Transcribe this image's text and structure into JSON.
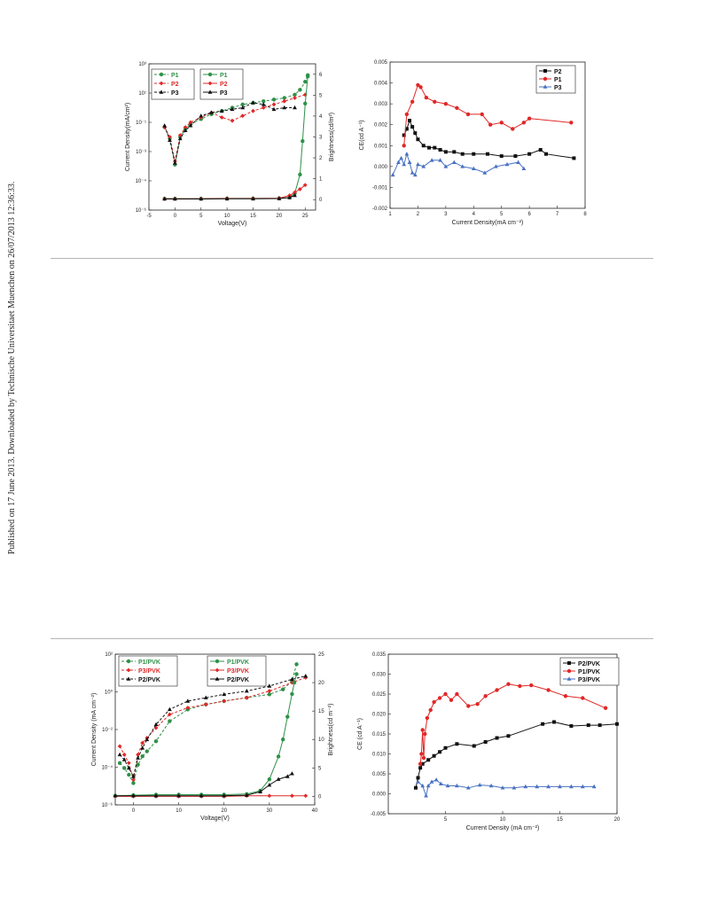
{
  "side_note": "Published on 17 June 2013. Downloaded by Technische Universitaet Muenchen on 26/07/2013 12:36:33.",
  "colors": {
    "green": "#2e9148",
    "red": "#e02828",
    "black": "#111111",
    "blue": "#4a72c2"
  },
  "chart_data": [
    {
      "type": "line",
      "xlabel": "Voltage(V)",
      "ylabel": "Current Density(mA/cm²)",
      "y2label": "Brightness(cd/m²)",
      "xlim": [
        -5,
        27
      ],
      "xticks": [
        -5,
        0,
        5,
        10,
        15,
        20,
        25
      ],
      "ylim": [
        -6,
        3
      ],
      "ytick_labels": [
        "10⁻⁶",
        "10⁻⁴",
        "10⁻³",
        "10⁻¹",
        "10¹",
        "10³"
      ],
      "y2lim": [
        -0.5,
        6.5
      ],
      "y2ticks": [
        0,
        1,
        2,
        3,
        4,
        5,
        6
      ],
      "legend_left": [
        "P1",
        "P2",
        "P3"
      ],
      "legend_right": [
        "P1",
        "P2",
        "P3"
      ],
      "series": [
        {
          "name": "P1",
          "kind": "current",
          "style": "dash",
          "color": "green",
          "x": [
            -2,
            -1,
            0,
            1,
            2,
            3,
            5,
            7,
            9,
            11,
            13,
            15,
            17,
            19,
            21,
            23,
            24,
            25,
            25.5
          ],
          "y": [
            -0.9,
            -1.6,
            -3.2,
            -1.5,
            -1,
            -0.7,
            -0.4,
            -0.1,
            0.1,
            0.3,
            0.5,
            0.6,
            0.7,
            0.8,
            0.9,
            1.1,
            1.4,
            1.9,
            2.3
          ]
        },
        {
          "name": "P2",
          "kind": "current",
          "style": "dash",
          "color": "red",
          "x": [
            -2,
            -1,
            0,
            1,
            2,
            3,
            5,
            7,
            9,
            11,
            13,
            15,
            17,
            19,
            21,
            23,
            25
          ],
          "y": [
            -0.9,
            -1.5,
            -3.0,
            -1.4,
            -0.9,
            -0.6,
            -0.3,
            0.0,
            -0.3,
            -0.5,
            -0.2,
            0.1,
            0.3,
            0.5,
            0.7,
            0.9,
            1.1
          ]
        },
        {
          "name": "P3",
          "kind": "current",
          "style": "dash",
          "color": "black",
          "x": [
            -2,
            -1,
            0,
            1,
            2,
            3,
            5,
            7,
            9,
            11,
            13,
            15,
            17,
            19,
            21,
            23
          ],
          "y": [
            -0.8,
            -1.7,
            -3.1,
            -1.6,
            -1.1,
            -0.8,
            -0.2,
            0.0,
            0.1,
            0.2,
            0.3,
            0.6,
            0.5,
            0.2,
            0.3,
            0.3
          ]
        },
        {
          "name": "P1",
          "kind": "brightness",
          "style": "solid",
          "color": "green",
          "x": [
            -2,
            0,
            5,
            10,
            15,
            20,
            22,
            23,
            24,
            24.5,
            25,
            25.5
          ],
          "y": [
            0.05,
            0.05,
            0.05,
            0.06,
            0.06,
            0.07,
            0.1,
            0.3,
            1.2,
            2.8,
            4.6,
            5.9
          ]
        },
        {
          "name": "P2",
          "kind": "brightness",
          "style": "solid",
          "color": "red",
          "x": [
            -2,
            0,
            5,
            10,
            15,
            20,
            22,
            23,
            24,
            25
          ],
          "y": [
            0.04,
            0.04,
            0.04,
            0.05,
            0.05,
            0.07,
            0.2,
            0.35,
            0.5,
            0.7
          ]
        },
        {
          "name": "P3",
          "kind": "brightness",
          "style": "solid",
          "color": "black",
          "x": [
            -2,
            0,
            5,
            10,
            15,
            20,
            22,
            23
          ],
          "y": [
            0.03,
            0.03,
            0.03,
            0.04,
            0.04,
            0.05,
            0.1,
            0.2
          ]
        }
      ]
    },
    {
      "type": "line",
      "xlabel": "Current Density(mA cm⁻²)",
      "ylabel": "CE(cd A⁻¹)",
      "xlim": [
        1,
        8
      ],
      "xticks": [
        1,
        2,
        3,
        4,
        5,
        6,
        7,
        8
      ],
      "ylim": [
        -0.002,
        0.005
      ],
      "yticks": [
        "-0.002",
        "-0.001",
        "0.000",
        "0.001",
        "0.002",
        "0.003",
        "0.004",
        "0.005"
      ],
      "legend": [
        "P2",
        "P1",
        "P3"
      ],
      "series": [
        {
          "name": "P2",
          "color": "black",
          "marker": "square",
          "x": [
            1.5,
            1.6,
            1.7,
            1.8,
            1.9,
            2.0,
            2.2,
            2.4,
            2.6,
            2.8,
            3.0,
            3.3,
            3.6,
            4.0,
            4.5,
            5.0,
            5.5,
            6.0,
            6.4,
            6.6,
            7.6
          ],
          "y": [
            0.0015,
            0.0018,
            0.0022,
            0.0019,
            0.0016,
            0.0013,
            0.001,
            0.0009,
            0.0009,
            0.0008,
            0.0007,
            0.0007,
            0.0006,
            0.0006,
            0.0006,
            0.0005,
            0.0005,
            0.0006,
            0.0008,
            0.0006,
            0.0004
          ]
        },
        {
          "name": "P1",
          "color": "red",
          "marker": "circle",
          "x": [
            1.5,
            1.6,
            1.8,
            2.0,
            2.1,
            2.3,
            2.6,
            3.0,
            3.4,
            3.8,
            4.3,
            4.6,
            5.0,
            5.4,
            5.8,
            6.0,
            7.5
          ],
          "y": [
            0.001,
            0.0025,
            0.0031,
            0.0039,
            0.0038,
            0.0033,
            0.0031,
            0.003,
            0.0028,
            0.0025,
            0.0025,
            0.002,
            0.0021,
            0.0018,
            0.0021,
            0.0023,
            0.0021
          ]
        },
        {
          "name": "P3",
          "color": "blue",
          "marker": "triangle",
          "x": [
            1.1,
            1.3,
            1.4,
            1.5,
            1.6,
            1.7,
            1.8,
            1.9,
            2.0,
            2.2,
            2.5,
            2.8,
            3.0,
            3.3,
            3.6,
            4.0,
            4.4,
            4.8,
            5.2,
            5.6,
            5.8
          ],
          "y": [
            -0.0004,
            0.0002,
            0.0004,
            0.0001,
            0.0006,
            0.0002,
            -0.0003,
            -0.0004,
            0.0001,
            0.0,
            0.0003,
            0.0003,
            0.0,
            0.0002,
            0.0,
            -0.0001,
            -0.0003,
            0.0,
            0.0001,
            0.0002,
            -0.0001
          ]
        }
      ]
    },
    {
      "type": "line",
      "xlabel": "Voltage(V)",
      "ylabel": "Current Density (mA cm⁻²)",
      "y2label": "Brightness(cd m⁻²)",
      "xlim": [
        -4,
        40
      ],
      "xticks": [
        0,
        10,
        20,
        30,
        40
      ],
      "ylim": [
        -6,
        3
      ],
      "ytick_labels": [
        "10⁻⁶",
        "10⁻⁴",
        "10⁻²",
        "10⁰",
        "10²"
      ],
      "y2lim": [
        -1.5,
        25
      ],
      "y2ticks": [
        0,
        5,
        10,
        15,
        20,
        25
      ],
      "legend_left": [
        "P1/PVK",
        "P3/PVK",
        "P2/PVK"
      ],
      "legend_right": [
        "P1/PVK",
        "P3/PVK",
        "P2/PVK"
      ],
      "series": [
        {
          "name": "P1/PVK",
          "kind": "current",
          "style": "dash",
          "color": "green",
          "x": [
            -3,
            -2,
            -1,
            0,
            1,
            2,
            3,
            5,
            8,
            12,
            16,
            20,
            25,
            30,
            33,
            35,
            36
          ],
          "y": [
            -3.5,
            -3.8,
            -4.2,
            -4.7,
            -3.6,
            -3.1,
            -2.8,
            -2.2,
            -1.0,
            -0.3,
            0.0,
            0.2,
            0.4,
            0.6,
            0.9,
            1.4,
            2.4
          ]
        },
        {
          "name": "P3/PVK",
          "kind": "current",
          "style": "dash",
          "color": "red",
          "x": [
            -3,
            -2,
            -1,
            0,
            1,
            2,
            3,
            5,
            8,
            12,
            16,
            20,
            25,
            30,
            35,
            38
          ],
          "y": [
            -2.5,
            -3.0,
            -3.5,
            -4.5,
            -3.0,
            -2.3,
            -2.0,
            -1.4,
            -0.6,
            -0.2,
            0.0,
            0.2,
            0.4,
            0.8,
            1.3,
            1.6
          ]
        },
        {
          "name": "P2/PVK",
          "kind": "current",
          "style": "dash",
          "color": "black",
          "x": [
            -3,
            -2,
            -1,
            0,
            1,
            2,
            3,
            5,
            8,
            12,
            16,
            20,
            25,
            30,
            35,
            38
          ],
          "y": [
            -3.0,
            -3.3,
            -3.8,
            -4.3,
            -3.2,
            -2.6,
            -2.1,
            -1.2,
            -0.3,
            0.2,
            0.4,
            0.6,
            0.8,
            1.1,
            1.5,
            1.7
          ]
        },
        {
          "name": "P1/PVK",
          "kind": "brightness",
          "style": "solid",
          "color": "green",
          "x": [
            -4,
            0,
            5,
            10,
            15,
            20,
            25,
            28,
            30,
            32,
            33,
            34,
            35,
            35.5,
            36
          ],
          "y": [
            0.1,
            0.2,
            0.3,
            0.3,
            0.3,
            0.3,
            0.4,
            1.0,
            3.0,
            7.0,
            10.0,
            14.0,
            18.0,
            20.0,
            21.5
          ]
        },
        {
          "name": "P3/PVK",
          "kind": "brightness",
          "style": "solid",
          "color": "red",
          "x": [
            -4,
            0,
            5,
            10,
            15,
            20,
            25,
            30,
            35,
            38
          ],
          "y": [
            0.0,
            0.0,
            0.0,
            0.0,
            0.0,
            0.0,
            0.1,
            0.1,
            0.1,
            0.1
          ]
        },
        {
          "name": "P2/PVK",
          "kind": "brightness",
          "style": "solid",
          "color": "black",
          "x": [
            -4,
            0,
            5,
            10,
            15,
            20,
            25,
            28,
            30,
            32,
            34,
            35
          ],
          "y": [
            0.1,
            0.1,
            0.1,
            0.1,
            0.1,
            0.1,
            0.2,
            0.8,
            2.0,
            3.0,
            3.5,
            4.0
          ]
        }
      ]
    },
    {
      "type": "line",
      "xlabel": "Current Density (mA cm⁻²)",
      "ylabel": "CE (cd A⁻¹)",
      "xlim": [
        0,
        20
      ],
      "xticks": [
        5,
        10,
        15,
        20
      ],
      "ylim": [
        -0.005,
        0.035
      ],
      "yticks": [
        "-0.005",
        "0.000",
        "0.005",
        "0.010",
        "0.015",
        "0.020",
        "0.025",
        "0.030",
        "0.035"
      ],
      "legend": [
        "P2/PVK",
        "P1/PVK",
        "P3/PVK"
      ],
      "series": [
        {
          "name": "P2/PVK",
          "color": "black",
          "marker": "square",
          "x": [
            2.4,
            2.6,
            2.8,
            3.0,
            3.5,
            4.0,
            4.5,
            5.0,
            6.0,
            7.5,
            8.5,
            9.5,
            10.5,
            13.5,
            14.5,
            16.0,
            17.5,
            18.5,
            20.0
          ],
          "y": [
            0.0015,
            0.004,
            0.0065,
            0.0075,
            0.0085,
            0.0095,
            0.0105,
            0.0115,
            0.0125,
            0.012,
            0.013,
            0.014,
            0.0145,
            0.0175,
            0.018,
            0.017,
            0.0172,
            0.0172,
            0.0175
          ]
        },
        {
          "name": "P1/PVK",
          "color": "red",
          "marker": "circle",
          "x": [
            2.8,
            2.9,
            3.0,
            3.1,
            3.2,
            3.4,
            3.7,
            4.0,
            4.5,
            5.0,
            5.5,
            6.0,
            7.0,
            7.8,
            8.5,
            9.5,
            10.5,
            11.5,
            12.5,
            14.0,
            15.5,
            17.0,
            19.0
          ],
          "y": [
            0.0075,
            0.01,
            0.016,
            0.009,
            0.015,
            0.019,
            0.021,
            0.023,
            0.024,
            0.025,
            0.0235,
            0.025,
            0.022,
            0.0225,
            0.0245,
            0.026,
            0.0275,
            0.027,
            0.0272,
            0.026,
            0.0245,
            0.024,
            0.0215
          ]
        },
        {
          "name": "P3/PVK",
          "color": "blue",
          "marker": "triangle",
          "x": [
            2.6,
            3.0,
            3.3,
            3.5,
            3.8,
            4.2,
            4.6,
            5.2,
            6.0,
            7.0,
            8.0,
            9.0,
            10.0,
            11.0,
            12.0,
            13.0,
            14.0,
            15.0,
            16.0,
            17.0,
            18.0
          ],
          "y": [
            0.003,
            0.002,
            -0.0005,
            0.002,
            0.003,
            0.0035,
            0.0025,
            0.002,
            0.002,
            0.0015,
            0.0022,
            0.002,
            0.0015,
            0.0015,
            0.0018,
            0.0018,
            0.0018,
            0.0018,
            0.0018,
            0.0018,
            0.0018
          ]
        }
      ]
    }
  ]
}
